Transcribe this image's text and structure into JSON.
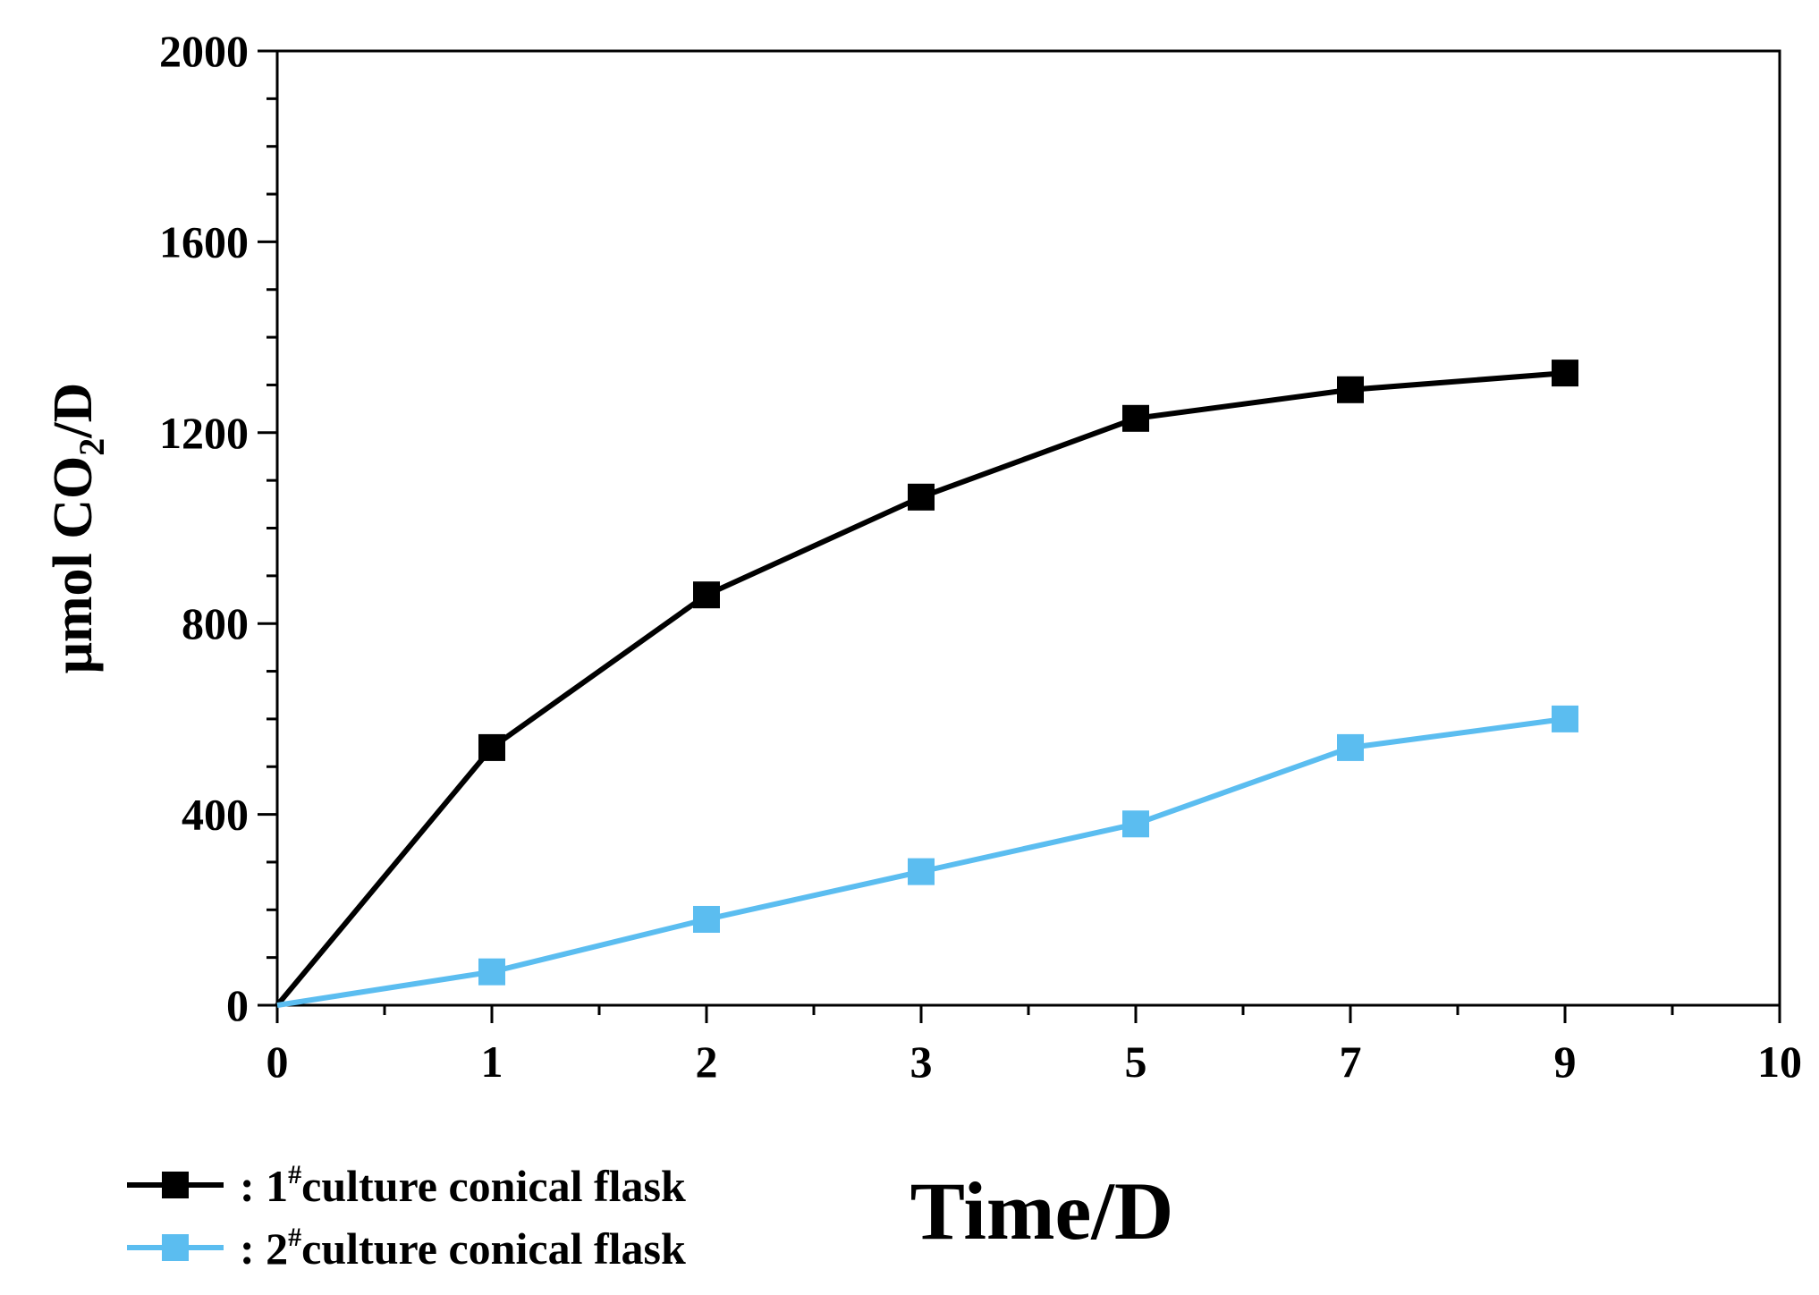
{
  "chart_data": {
    "type": "line",
    "ylabel_main": "μmol CO",
    "ylabel_sub": "2",
    "ylabel_tail": "/D",
    "xlabel": "Time/D",
    "ylim": [
      0,
      2000
    ],
    "y_ticks": [
      0,
      400,
      800,
      1200,
      1600,
      2000
    ],
    "y_tick_labels": [
      "0",
      "400",
      "800",
      "1200",
      "1600",
      "2000"
    ],
    "x_tick_labels": [
      "0",
      "1",
      "2",
      "3",
      "5",
      "7",
      "9",
      "10"
    ],
    "grid": false,
    "legend_position": "bottom-left",
    "legend_separator": ":",
    "series": [
      {
        "name_pre": "1",
        "name_sup": "#",
        "name_rest": "culture   conical   flask",
        "color": "#000000",
        "points": [
          {
            "x": "0",
            "y": 0
          },
          {
            "x": "1",
            "y": 540
          },
          {
            "x": "2",
            "y": 860
          },
          {
            "x": "3",
            "y": 1065
          },
          {
            "x": "5",
            "y": 1230
          },
          {
            "x": "7",
            "y": 1290
          },
          {
            "x": "9",
            "y": 1325
          }
        ]
      },
      {
        "name_pre": "2",
        "name_sup": "#",
        "name_rest": "culture   conical   flask",
        "color": "#5bbdf0",
        "points": [
          {
            "x": "0",
            "y": 0
          },
          {
            "x": "1",
            "y": 70
          },
          {
            "x": "2",
            "y": 180
          },
          {
            "x": "3",
            "y": 280
          },
          {
            "x": "5",
            "y": 380
          },
          {
            "x": "7",
            "y": 540
          },
          {
            "x": "9",
            "y": 600
          }
        ]
      }
    ]
  }
}
